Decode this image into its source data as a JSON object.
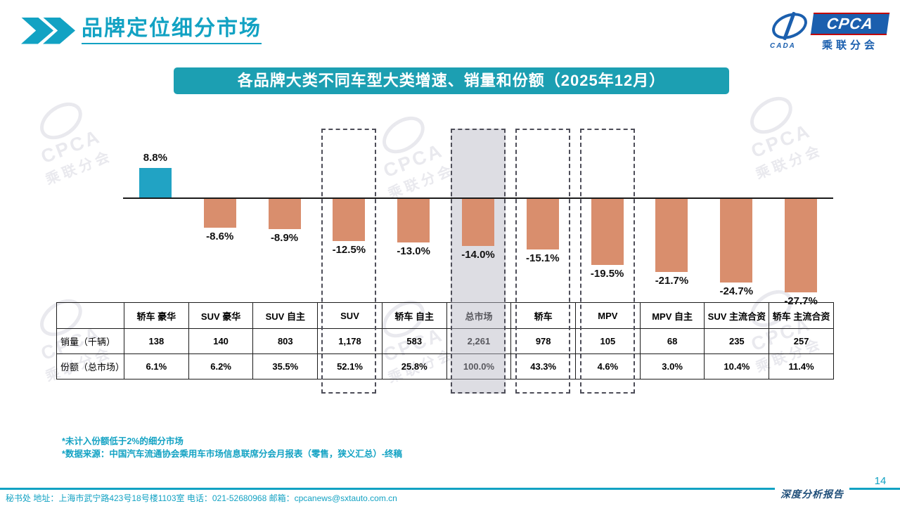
{
  "colors": {
    "accent": "#12A2C3",
    "banner_bg": "#1C9FB2",
    "highlight_border": "#4D4D58",
    "highlight_fill": "#D9D9DE",
    "report_navy": "#1F4E79",
    "logo_blue": "#1B5FAE",
    "logo_red": "#C00000"
  },
  "header": {
    "title": "品牌定位细分市场",
    "logo": {
      "cpca": "CPCA",
      "cada": "CADA",
      "subtitle": "乘联分会"
    }
  },
  "banner": {
    "text": "各品牌大类不同车型大类增速、销量和份额（2025年12月）"
  },
  "chart_data": {
    "type": "bar",
    "title": "各品牌大类不同车型大类增速、销量和份额（2025年12月）",
    "unit": "%",
    "categories": [
      "轿车 豪华",
      "SUV 豪华",
      "SUV 自主",
      "SUV",
      "轿车 自主",
      "总市场",
      "轿车",
      "MPV",
      "MPV 自主",
      "SUV 主流合资",
      "轿车 主流合资"
    ],
    "values": [
      8.8,
      -8.6,
      -8.9,
      -12.5,
      -13.0,
      -14.0,
      -15.1,
      -19.5,
      -21.7,
      -24.7,
      -27.7
    ],
    "value_labels": [
      "8.8%",
      "-8.6%",
      "-8.9%",
      "-12.5%",
      "-13.0%",
      "-14.0%",
      "-15.1%",
      "-19.5%",
      "-21.7%",
      "-24.7%",
      "-27.7%"
    ],
    "ylim": [
      -30,
      12
    ],
    "grid": false,
    "legend": false,
    "positive_color": "#21A3C4",
    "negative_color": "#D98E6D",
    "highlighted_categories": [
      "SUV",
      "总市场",
      "轿车",
      "MPV"
    ],
    "filled_highlight_category": "总市场"
  },
  "table": {
    "corner_label": "",
    "columns": [
      "轿车 豪华",
      "SUV 豪华",
      "SUV 自主",
      "SUV",
      "轿车 自主",
      "总市场",
      "轿车",
      "MPV",
      "MPV 自主",
      "SUV 主流合资",
      "轿车 主流合资"
    ],
    "rows": [
      {
        "label": "销量（千辆）",
        "values": [
          "138",
          "140",
          "803",
          "1,178",
          "583",
          "2,261",
          "978",
          "105",
          "68",
          "235",
          "257"
        ]
      },
      {
        "label": "份额（总市场）",
        "values": [
          "6.1%",
          "6.2%",
          "35.5%",
          "52.1%",
          "25.8%",
          "100.0%",
          "43.3%",
          "4.6%",
          "3.0%",
          "10.4%",
          "11.4%"
        ]
      }
    ],
    "highlighted_column": "总市场"
  },
  "footnotes": [
    "*未计入份额低于2%的细分市场",
    "*数据来源：中国汽车流通协会乘用车市场信息联席分会月报表（零售，狭义汇总）-终稿"
  ],
  "footer": {
    "contact": "秘书处  地址：上海市武宁路423号18号楼1103室 电话：021-52680968   邮箱：cpcanews@sxtauto.com.cn",
    "report_label": "深度分析报告",
    "page_number": "14"
  },
  "watermark": {
    "line1": "CPCA",
    "line2": "乘联分会"
  }
}
